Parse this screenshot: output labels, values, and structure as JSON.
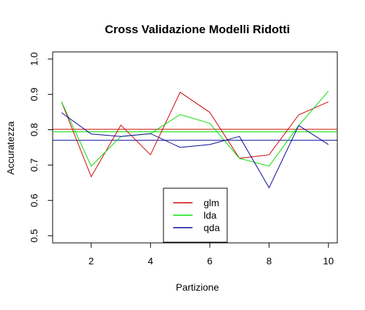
{
  "chart_data": {
    "type": "line",
    "title": "Cross Validazione Modelli Ridotti",
    "xlabel": "Partizione",
    "ylabel": "Accuratezza",
    "xlim": [
      0.7,
      10.3
    ],
    "ylim": [
      0.48,
      1.02
    ],
    "xticks": [
      2,
      4,
      6,
      8,
      10
    ],
    "yticks": [
      0.5,
      0.6,
      0.7,
      0.8,
      0.9,
      1.0
    ],
    "ytick_labels": [
      "0.5",
      "0.6",
      "0.7",
      "0.8",
      "0.9",
      "1.0"
    ],
    "x": [
      1,
      2,
      3,
      4,
      5,
      6,
      7,
      8,
      9,
      10
    ],
    "series": [
      {
        "name": "glm",
        "color": "#cc0000",
        "values": [
          0.879,
          0.667,
          0.813,
          0.729,
          0.906,
          0.849,
          0.719,
          0.729,
          0.842,
          0.879
        ],
        "mean": 0.801
      },
      {
        "name": "lda",
        "color": "#00dd00",
        "values": [
          0.879,
          0.697,
          0.781,
          0.789,
          0.843,
          0.818,
          0.719,
          0.697,
          0.812,
          0.909
        ],
        "mean": 0.794
      },
      {
        "name": "qda",
        "color": "#000099",
        "values": [
          0.848,
          0.788,
          0.781,
          0.789,
          0.75,
          0.758,
          0.781,
          0.636,
          0.812,
          0.758
        ],
        "mean": 0.77
      }
    ],
    "legend_position": "bottom-center",
    "grid": false
  }
}
